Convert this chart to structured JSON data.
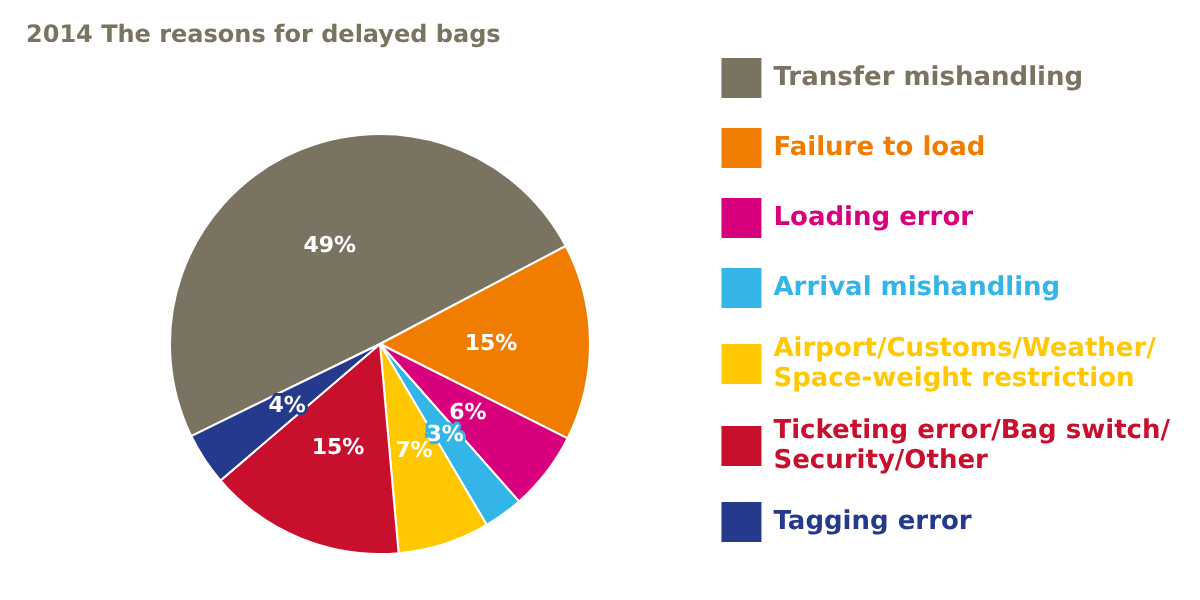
{
  "chart_data": {
    "type": "pie",
    "title": "2014 The reasons for delayed bags",
    "categories": [
      "Transfer mishandling",
      "Failure to load",
      "Loading error",
      "Arrival mishandling",
      "Airport/Customs/Weather/\nSpace-weight restriction",
      "Ticketing error/Bag switch/\nSecurity/Other",
      "Tagging error"
    ],
    "values": [
      49,
      15,
      6,
      3,
      7,
      15,
      4
    ],
    "value_labels": [
      "49%",
      "15%",
      "6%",
      "3%",
      "7%",
      "15%",
      "4%"
    ],
    "colors": [
      "#7a7361",
      "#f07d00",
      "#d9007e",
      "#33b5e8",
      "#ffc800",
      "#c8102e",
      "#253a8c"
    ],
    "legend": "right"
  }
}
